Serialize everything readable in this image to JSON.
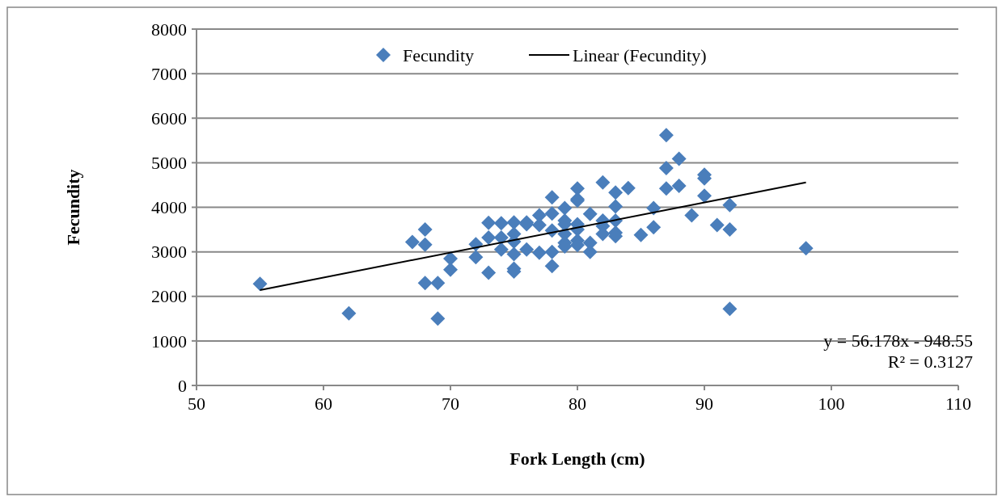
{
  "chart_data": {
    "type": "scatter",
    "xlabel": "Fork Length (cm)",
    "ylabel": "Fecundity",
    "xlim": [
      50,
      110
    ],
    "xticks": [
      50,
      60,
      70,
      80,
      90,
      100,
      110
    ],
    "ylim": [
      0,
      8000
    ],
    "yticks": [
      0,
      1000,
      2000,
      3000,
      4000,
      5000,
      6000,
      7000,
      8000
    ],
    "grid": "y",
    "legend": "top",
    "marker": "diamond",
    "annotations": [
      "y = 56.178x - 948.55",
      "R² = 0.3127"
    ],
    "series": [
      {
        "name": "Fecundity",
        "color": "#4a7ebb",
        "x": [
          55,
          62,
          67,
          68,
          68,
          68,
          69,
          69,
          70,
          70,
          72,
          72,
          73,
          73,
          73,
          74,
          74,
          74,
          75,
          75,
          75,
          75,
          75,
          75,
          76,
          76,
          76,
          77,
          77,
          77,
          78,
          78,
          78,
          78,
          78,
          79,
          79,
          79,
          79,
          79,
          79,
          80,
          80,
          80,
          80,
          80,
          80,
          80,
          81,
          81,
          81,
          82,
          82,
          82,
          82,
          83,
          83,
          83,
          83,
          83,
          84,
          85,
          86,
          86,
          87,
          87,
          87,
          88,
          88,
          89,
          90,
          90,
          90,
          91,
          92,
          92,
          92,
          98
        ],
        "values": [
          2280,
          1620,
          3220,
          3500,
          3160,
          2300,
          2300,
          1500,
          2850,
          2600,
          3170,
          2880,
          3650,
          3320,
          2530,
          3640,
          3320,
          3050,
          3660,
          3400,
          3230,
          2950,
          2620,
          2560,
          3660,
          3620,
          3050,
          3820,
          3600,
          2980,
          4220,
          3860,
          3480,
          3000,
          2680,
          3980,
          3700,
          3620,
          3400,
          3200,
          3120,
          4420,
          4180,
          4150,
          3620,
          3500,
          3250,
          3150,
          3850,
          3200,
          3000,
          4560,
          3700,
          3580,
          3400,
          4330,
          4020,
          3700,
          3430,
          3350,
          4430,
          3380,
          3980,
          3550,
          5620,
          4880,
          4420,
          5090,
          4480,
          3820,
          4730,
          4650,
          4260,
          3600,
          4050,
          3500,
          1720,
          3080
        ]
      },
      {
        "name": "Linear (Fecundity)",
        "type": "line",
        "color": "#000000",
        "marker": "none",
        "line_style": "solid",
        "x": [
          55,
          98
        ],
        "values": [
          2141.24,
          4556.89
        ]
      }
    ]
  }
}
